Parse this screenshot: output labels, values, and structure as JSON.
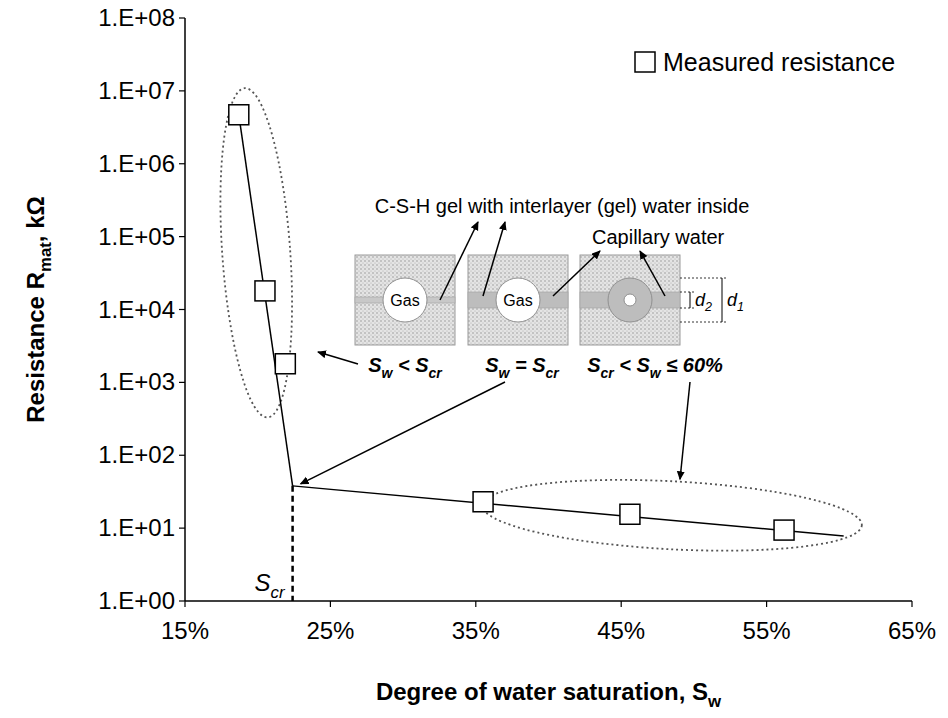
{
  "chart_data": {
    "type": "scatter",
    "x_label": [
      {
        "text": "Degree of water saturation,  S"
      },
      {
        "text": "w",
        "sub": true
      }
    ],
    "y_label": [
      {
        "text": "Resistance  R"
      },
      {
        "text": "mat",
        "sub": true
      },
      {
        "text": ", kΩ"
      }
    ],
    "log": "y",
    "grid": false,
    "legend": "top-right",
    "xlim": [
      15,
      65
    ],
    "xticks": [
      {
        "value": 15,
        "label": "15%"
      },
      {
        "value": 25,
        "label": "25%"
      },
      {
        "value": 35,
        "label": "35%"
      },
      {
        "value": 45,
        "label": "45%"
      },
      {
        "value": 55,
        "label": "55%"
      },
      {
        "value": 65,
        "label": "65%"
      }
    ],
    "ylim": [
      1,
      100000000
    ],
    "yticks": [
      {
        "value": 1,
        "label": "1.E+00"
      },
      {
        "value": 10,
        "label": "1.E+01"
      },
      {
        "value": 100,
        "label": "1.E+02"
      },
      {
        "value": 1000,
        "label": "1.E+03"
      },
      {
        "value": 10000,
        "label": "1.E+04"
      },
      {
        "value": 100000,
        "label": "1.E+05"
      },
      {
        "value": 1000000,
        "label": "1.E+06"
      },
      {
        "value": 10000000,
        "label": "1.E+07"
      },
      {
        "value": 100000000,
        "label": "1.E+08"
      }
    ],
    "series": [
      {
        "name": "Measured resistance",
        "type": "scatter",
        "marker": "square",
        "color": "#000000",
        "x": [
          18.7,
          20.5,
          21.9,
          35.5,
          45.6,
          56.2
        ],
        "values": [
          4700000,
          18000,
          1800,
          23,
          15.5,
          9.4
        ]
      },
      {
        "type": "line",
        "line_style": "solid",
        "color": "#000000",
        "x": [
          18.7,
          22.4
        ],
        "values": [
          4700000,
          38
        ]
      },
      {
        "type": "line",
        "line_style": "solid",
        "color": "#000000",
        "x": [
          22.4,
          60.3
        ],
        "values": [
          38,
          7.8
        ]
      }
    ],
    "s_cr": {
      "x": 22.4,
      "value": 38,
      "label": [
        {
          "text": "S"
        },
        {
          "text": "cr",
          "sub": true
        }
      ]
    },
    "annotations": [
      [
        {
          "text": "C-S-H gel with interlayer (gel) water inside"
        }
      ],
      [
        {
          "text": "Capillary water"
        }
      ],
      [
        {
          "text": "Gas"
        }
      ],
      [
        {
          "text": "Gas"
        }
      ],
      [
        {
          "text": "S"
        },
        {
          "text": "w",
          "sub": true
        },
        {
          "text": " < S"
        },
        {
          "text": "cr",
          "sub": true
        }
      ],
      [
        {
          "text": "S"
        },
        {
          "text": "w",
          "sub": true
        },
        {
          "text": " = S"
        },
        {
          "text": "cr",
          "sub": true
        }
      ],
      [
        {
          "text": "S"
        },
        {
          "text": "cr",
          "sub": true
        },
        {
          "text": " < S"
        },
        {
          "text": "w",
          "sub": true
        },
        {
          "text": " ≤ 60%"
        }
      ],
      [
        {
          "text": "d"
        },
        {
          "text": "2",
          "sub": true
        }
      ],
      [
        {
          "text": "d"
        },
        {
          "text": "1",
          "sub": true
        }
      ]
    ]
  }
}
